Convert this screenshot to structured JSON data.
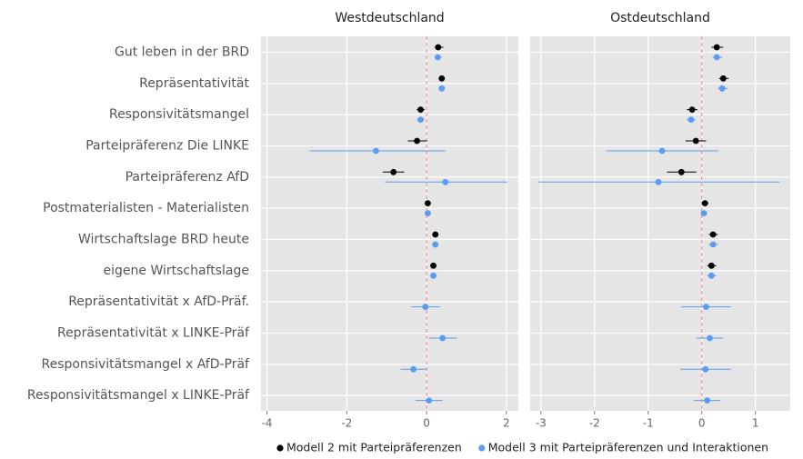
{
  "chart_data": {
    "type": "coefplot",
    "categories": [
      "Gut leben in der BRD",
      "Repräsentativität",
      "Responsivitätsmangel",
      "Parteipräferenz Die LINKE",
      "Parteipräferenz AfD",
      "Postmaterialisten - Materialisten",
      "Wirtschaftslage BRD heute",
      "eigene Wirtschaftslage",
      "Repräsentativität x AfD-Präf.",
      "Repräsentativität x LINKE-Präf",
      "Responsivitätsmangel x AfD-Präf",
      "Responsivitätsmangel x LINKE-Präf"
    ],
    "series": [
      {
        "name": "Modell 2 mit Parteipräferenzen",
        "color": "#000000"
      },
      {
        "name": "Modell 3 mit Parteipräferenzen und Interaktionen",
        "color": "#5b9bf0"
      }
    ],
    "grid": true,
    "panels": [
      {
        "title": "Westdeutschland",
        "xlim": [
          -4.15,
          2.3
        ],
        "xticks": [
          -4,
          -2,
          0,
          2
        ],
        "series": [
          {
            "values": [
              0.29,
              0.38,
              -0.15,
              -0.24,
              -0.83,
              0.03,
              0.22,
              0.17,
              null,
              null,
              null,
              null
            ],
            "lower": [
              0.2,
              0.3,
              -0.25,
              -0.47,
              -1.1,
              -0.05,
              0.14,
              0.09,
              null,
              null,
              null,
              null
            ],
            "upper": [
              0.42,
              0.46,
              -0.05,
              0.01,
              -0.56,
              0.11,
              0.3,
              0.25,
              null,
              null,
              null,
              null
            ]
          },
          {
            "values": [
              0.28,
              0.38,
              -0.15,
              -1.27,
              0.47,
              0.03,
              0.22,
              0.17,
              -0.03,
              0.4,
              -0.33,
              0.06
            ],
            "lower": [
              0.2,
              0.3,
              -0.24,
              -2.93,
              -1.04,
              -0.05,
              0.14,
              0.09,
              -0.38,
              0.06,
              -0.65,
              -0.28
            ],
            "upper": [
              0.38,
              0.46,
              -0.06,
              0.47,
              2.02,
              0.11,
              0.3,
              0.25,
              0.33,
              0.76,
              0.01,
              0.4
            ]
          }
        ]
      },
      {
        "title": "Ostdeutschland",
        "xlim": [
          -3.2,
          1.65
        ],
        "xticks": [
          -3,
          -2,
          -1,
          0,
          1
        ],
        "series": [
          {
            "values": [
              0.28,
              0.4,
              -0.18,
              -0.11,
              -0.38,
              0.06,
              0.21,
              0.18,
              null,
              null,
              null,
              null
            ],
            "lower": [
              0.18,
              0.32,
              -0.28,
              -0.3,
              -0.65,
              0.0,
              0.13,
              0.1,
              null,
              null,
              null,
              null
            ],
            "upper": [
              0.4,
              0.5,
              -0.08,
              0.08,
              -0.1,
              0.12,
              0.3,
              0.27,
              null,
              null,
              null,
              null
            ]
          },
          {
            "values": [
              0.28,
              0.38,
              -0.2,
              -0.74,
              -0.81,
              0.04,
              0.21,
              0.18,
              0.08,
              0.15,
              0.07,
              0.1
            ],
            "lower": [
              0.2,
              0.3,
              -0.28,
              -1.78,
              -3.05,
              -0.02,
              0.13,
              0.1,
              -0.38,
              -0.1,
              -0.4,
              -0.15
            ],
            "upper": [
              0.38,
              0.48,
              -0.12,
              0.3,
              1.45,
              0.1,
              0.3,
              0.27,
              0.54,
              0.4,
              0.54,
              0.35
            ]
          }
        ]
      }
    ]
  }
}
